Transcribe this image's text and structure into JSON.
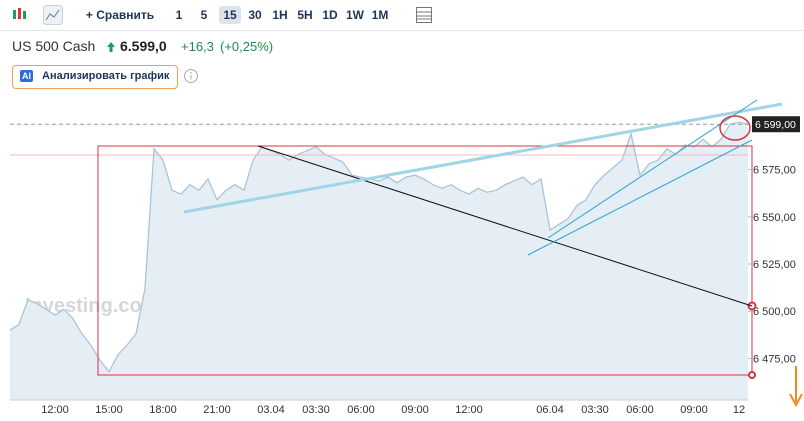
{
  "toolbar": {
    "compare": "+ Сравнить",
    "intervals": [
      "1",
      "5",
      "15",
      "30",
      "1H",
      "5H",
      "1D",
      "1W",
      "1M"
    ],
    "active_interval": "15"
  },
  "header": {
    "symbol": "US 500 Cash",
    "price": "6.599,0",
    "change": "+16,3",
    "change_pct": "(+0,25%)"
  },
  "analyze_button": {
    "badge": "AI",
    "label": "Анализировать график"
  },
  "watermark": "Investing.com",
  "chart_data": {
    "type": "area",
    "color": "#a9c4d8",
    "fill": "#e6eef5",
    "grid": false,
    "categories": [
      null,
      null,
      null,
      null,
      null,
      "12:00",
      null,
      null,
      null,
      null,
      null,
      "15:00",
      null,
      null,
      null,
      null,
      null,
      "18:00",
      null,
      null,
      null,
      null,
      null,
      "21:00",
      null,
      null,
      null,
      null,
      null,
      "03.04",
      null,
      null,
      null,
      null,
      "03:30",
      null,
      null,
      null,
      null,
      "06:00",
      null,
      null,
      null,
      null,
      null,
      "09:00",
      null,
      null,
      null,
      null,
      null,
      "12:00",
      null,
      null,
      null,
      null,
      null,
      null,
      null,
      null,
      "06.04",
      null,
      null,
      null,
      null,
      "03:30",
      null,
      null,
      null,
      null,
      "06:00",
      null,
      null,
      null,
      null,
      null,
      "09:00",
      null,
      null,
      null,
      null,
      "12",
      null
    ],
    "values": [
      6490,
      6493,
      6506,
      6504,
      6501,
      6498,
      6501,
      6496,
      6488,
      6482,
      6474,
      6468,
      6477,
      6482,
      6488,
      6512,
      6586,
      6580,
      6564,
      6562,
      6567,
      6564,
      6570,
      6559,
      6564,
      6567,
      6564,
      6580,
      6587,
      6585,
      6583,
      6580,
      6583,
      6585,
      6587,
      6583,
      6581,
      6579,
      6572,
      6571,
      6570,
      6569,
      6571,
      6568,
      6571,
      6572,
      6570,
      6567,
      6565,
      6567,
      6564,
      6562,
      6565,
      6563,
      6564,
      6567,
      6569,
      6571,
      6567,
      6570,
      6543,
      6546,
      6549,
      6556,
      6559,
      6567,
      6572,
      6576,
      6580,
      6594,
      6572,
      6578,
      6580,
      6586,
      6583,
      6588,
      6587,
      6591,
      6587,
      6591,
      6599,
      6600,
      6599
    ],
    "ylim": [
      6453,
      6615
    ],
    "yticks": [
      {
        "value": 6475,
        "label": "6 475,00"
      },
      {
        "value": 6500,
        "label": "6 500,00"
      },
      {
        "value": 6525,
        "label": "6 525,00"
      },
      {
        "value": 6550,
        "label": "6 550,00"
      },
      {
        "value": 6575,
        "label": "6 575,00"
      }
    ],
    "last_price": {
      "value": 6599,
      "label": "6 599,00"
    }
  }
}
